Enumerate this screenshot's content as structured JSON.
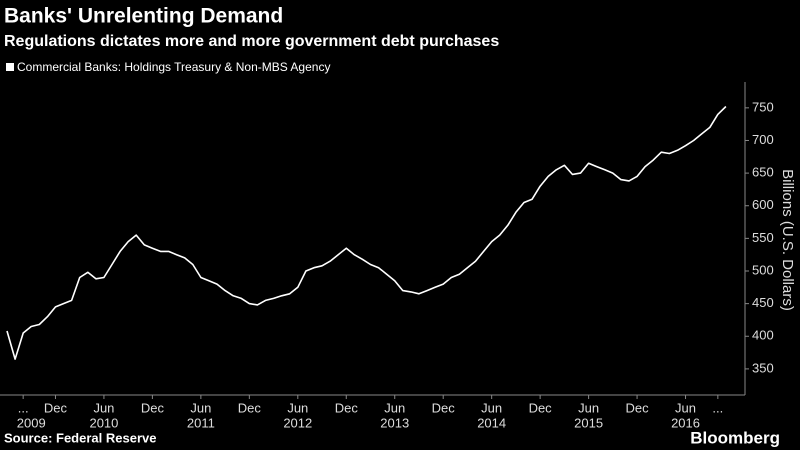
{
  "chart_data": {
    "type": "line",
    "title": "Banks' Unrelenting Demand",
    "subtitle": "Regulations dictates more and more government debt purchases",
    "y_axis_label": "Billions (U.S. Dollars)",
    "source": "Source: Federal Reserve",
    "brand": "Bloomberg",
    "x": [
      "2009-06",
      "2009-07",
      "2009-08",
      "2009-09",
      "2009-10",
      "2009-11",
      "2009-12",
      "2010-01",
      "2010-02",
      "2010-03",
      "2010-04",
      "2010-05",
      "2010-06",
      "2010-07",
      "2010-08",
      "2010-09",
      "2010-10",
      "2010-11",
      "2010-12",
      "2011-01",
      "2011-02",
      "2011-03",
      "2011-04",
      "2011-05",
      "2011-06",
      "2011-07",
      "2011-08",
      "2011-09",
      "2011-10",
      "2011-11",
      "2011-12",
      "2012-01",
      "2012-02",
      "2012-03",
      "2012-04",
      "2012-05",
      "2012-06",
      "2012-07",
      "2012-08",
      "2012-09",
      "2012-10",
      "2012-11",
      "2012-12",
      "2013-01",
      "2013-02",
      "2013-03",
      "2013-04",
      "2013-05",
      "2013-06",
      "2013-07",
      "2013-08",
      "2013-09",
      "2013-10",
      "2013-11",
      "2013-12",
      "2014-01",
      "2014-02",
      "2014-03",
      "2014-04",
      "2014-05",
      "2014-06",
      "2014-07",
      "2014-08",
      "2014-09",
      "2014-10",
      "2014-11",
      "2014-12",
      "2015-01",
      "2015-02",
      "2015-03",
      "2015-04",
      "2015-05",
      "2015-06",
      "2015-07",
      "2015-08",
      "2015-09",
      "2015-10",
      "2015-11",
      "2015-12",
      "2016-01",
      "2016-02",
      "2016-03",
      "2016-04",
      "2016-05",
      "2016-06",
      "2016-07",
      "2016-08",
      "2016-09",
      "2016-10",
      "2016-11"
    ],
    "series": [
      {
        "name": "Commercial Banks: Holdings Treasury & Non-MBS Agency",
        "color": "#ffffff",
        "values": [
          408,
          365,
          405,
          415,
          418,
          430,
          445,
          450,
          455,
          490,
          498,
          488,
          490,
          510,
          530,
          545,
          555,
          540,
          535,
          530,
          530,
          525,
          520,
          510,
          490,
          485,
          480,
          470,
          462,
          458,
          450,
          448,
          455,
          458,
          462,
          465,
          475,
          500,
          505,
          508,
          515,
          525,
          535,
          525,
          518,
          510,
          505,
          495,
          485,
          470,
          468,
          465,
          470,
          475,
          480,
          490,
          495,
          505,
          515,
          530,
          545,
          555,
          570,
          590,
          605,
          610,
          630,
          645,
          655,
          662,
          648,
          650,
          665,
          660,
          655,
          650,
          640,
          638,
          645,
          660,
          670,
          682,
          680,
          685,
          692,
          700,
          710,
          720,
          740,
          752
        ]
      }
    ],
    "xlim": [
      "2009-06",
      "2016-12"
    ],
    "xticks": [
      {
        "value": "2009-08",
        "label": "..."
      },
      {
        "value": "2009-12",
        "label": "Dec"
      },
      {
        "value": "2010-06",
        "label": "Jun"
      },
      {
        "value": "2010-12",
        "label": "Dec"
      },
      {
        "value": "2011-06",
        "label": "Jun"
      },
      {
        "value": "2011-12",
        "label": "Dec"
      },
      {
        "value": "2012-06",
        "label": "Jun"
      },
      {
        "value": "2012-12",
        "label": "Dec"
      },
      {
        "value": "2013-06",
        "label": "Jun"
      },
      {
        "value": "2013-12",
        "label": "Dec"
      },
      {
        "value": "2014-06",
        "label": "Jun"
      },
      {
        "value": "2014-12",
        "label": "Dec"
      },
      {
        "value": "2015-06",
        "label": "Jun"
      },
      {
        "value": "2015-12",
        "label": "Dec"
      },
      {
        "value": "2016-06",
        "label": "Jun"
      },
      {
        "value": "2016-10",
        "label": "..."
      }
    ],
    "year_labels": [
      {
        "value": "2009-09",
        "label": "2009"
      },
      {
        "value": "2010-06",
        "label": "2010"
      },
      {
        "value": "2011-06",
        "label": "2011"
      },
      {
        "value": "2012-06",
        "label": "2012"
      },
      {
        "value": "2013-06",
        "label": "2013"
      },
      {
        "value": "2014-06",
        "label": "2014"
      },
      {
        "value": "2015-06",
        "label": "2015"
      },
      {
        "value": "2016-06",
        "label": "2016"
      }
    ],
    "ylim": [
      310,
      785
    ],
    "yticks": [
      350,
      400,
      450,
      500,
      550,
      600,
      650,
      700,
      750
    ],
    "grid": false
  }
}
